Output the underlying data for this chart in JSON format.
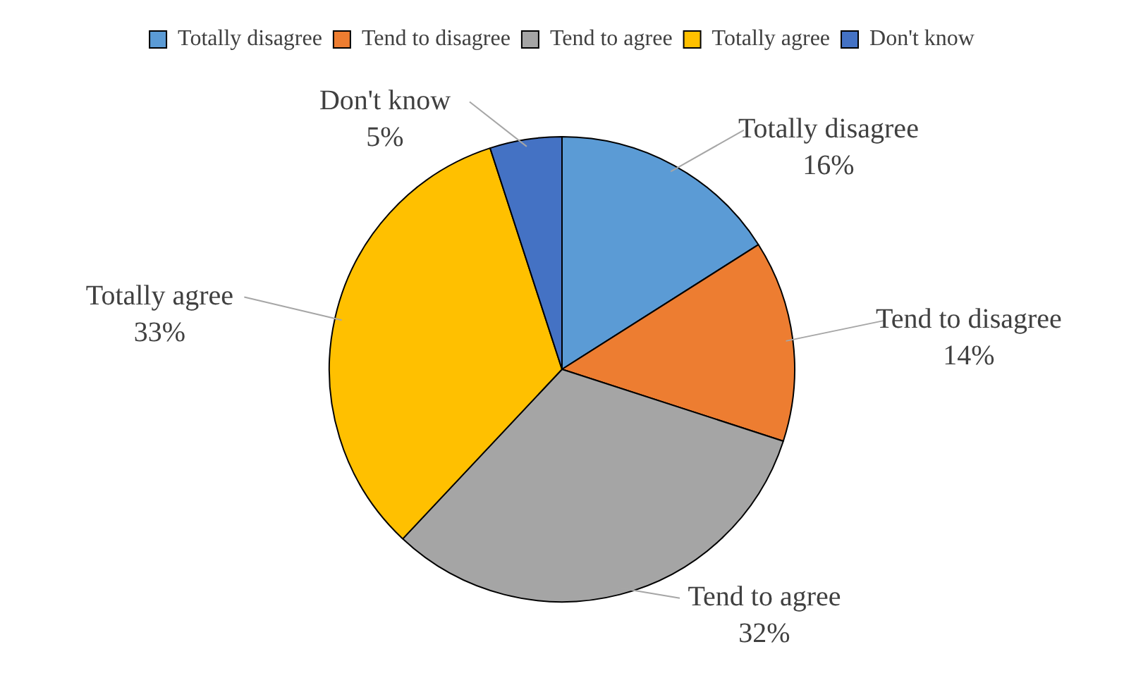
{
  "chart_data": {
    "type": "pie",
    "categories": [
      "Totally disagree",
      "Tend to disagree",
      "Tend to agree",
      "Totally agree",
      "Don't know"
    ],
    "values": [
      16,
      14,
      32,
      33,
      5
    ],
    "colors": [
      "#5b9bd5",
      "#ed7d31",
      "#a5a5a5",
      "#ffc000",
      "#4472c4"
    ],
    "value_labels": [
      "16%",
      "14%",
      "32%",
      "33%",
      "5%"
    ],
    "legend": "top"
  }
}
